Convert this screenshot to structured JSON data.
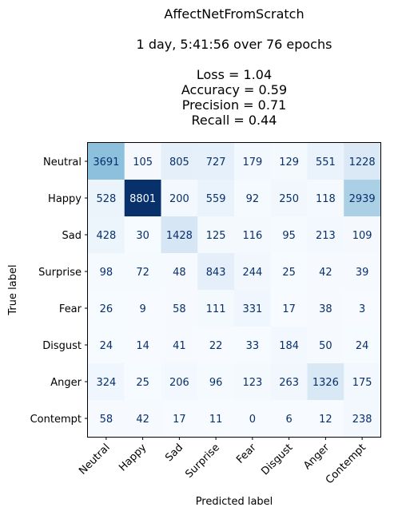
{
  "title_lines": [
    "AffectNetFromScratch",
    "",
    "1 day, 5:41:56 over 76 epochs",
    "",
    "Loss = 1.04",
    "Accuracy = 0.59",
    "Precision = 0.71",
    "Recall = 0.44"
  ],
  "chart_data": {
    "type": "heatmap",
    "title": "AffectNetFromScratch",
    "xlabel": "Predicted label",
    "ylabel": "True label",
    "x_categories": [
      "Neutral",
      "Happy",
      "Sad",
      "Surprise",
      "Fear",
      "Disgust",
      "Anger",
      "Contempt"
    ],
    "y_categories": [
      "Neutral",
      "Happy",
      "Sad",
      "Surprise",
      "Fear",
      "Disgust",
      "Anger",
      "Contempt"
    ],
    "values": [
      [
        3691,
        105,
        805,
        727,
        179,
        129,
        551,
        1228
      ],
      [
        528,
        8801,
        200,
        559,
        92,
        250,
        118,
        2939
      ],
      [
        428,
        30,
        1428,
        125,
        116,
        95,
        213,
        109
      ],
      [
        98,
        72,
        48,
        843,
        244,
        25,
        42,
        39
      ],
      [
        26,
        9,
        58,
        111,
        331,
        17,
        38,
        3
      ],
      [
        24,
        14,
        41,
        22,
        33,
        184,
        50,
        24
      ],
      [
        324,
        25,
        206,
        96,
        123,
        263,
        1326,
        175
      ],
      [
        58,
        42,
        17,
        11,
        0,
        6,
        12,
        238
      ]
    ],
    "colormap": "Blues",
    "vmin": 0,
    "vmax": 8801,
    "colorbar": false
  }
}
